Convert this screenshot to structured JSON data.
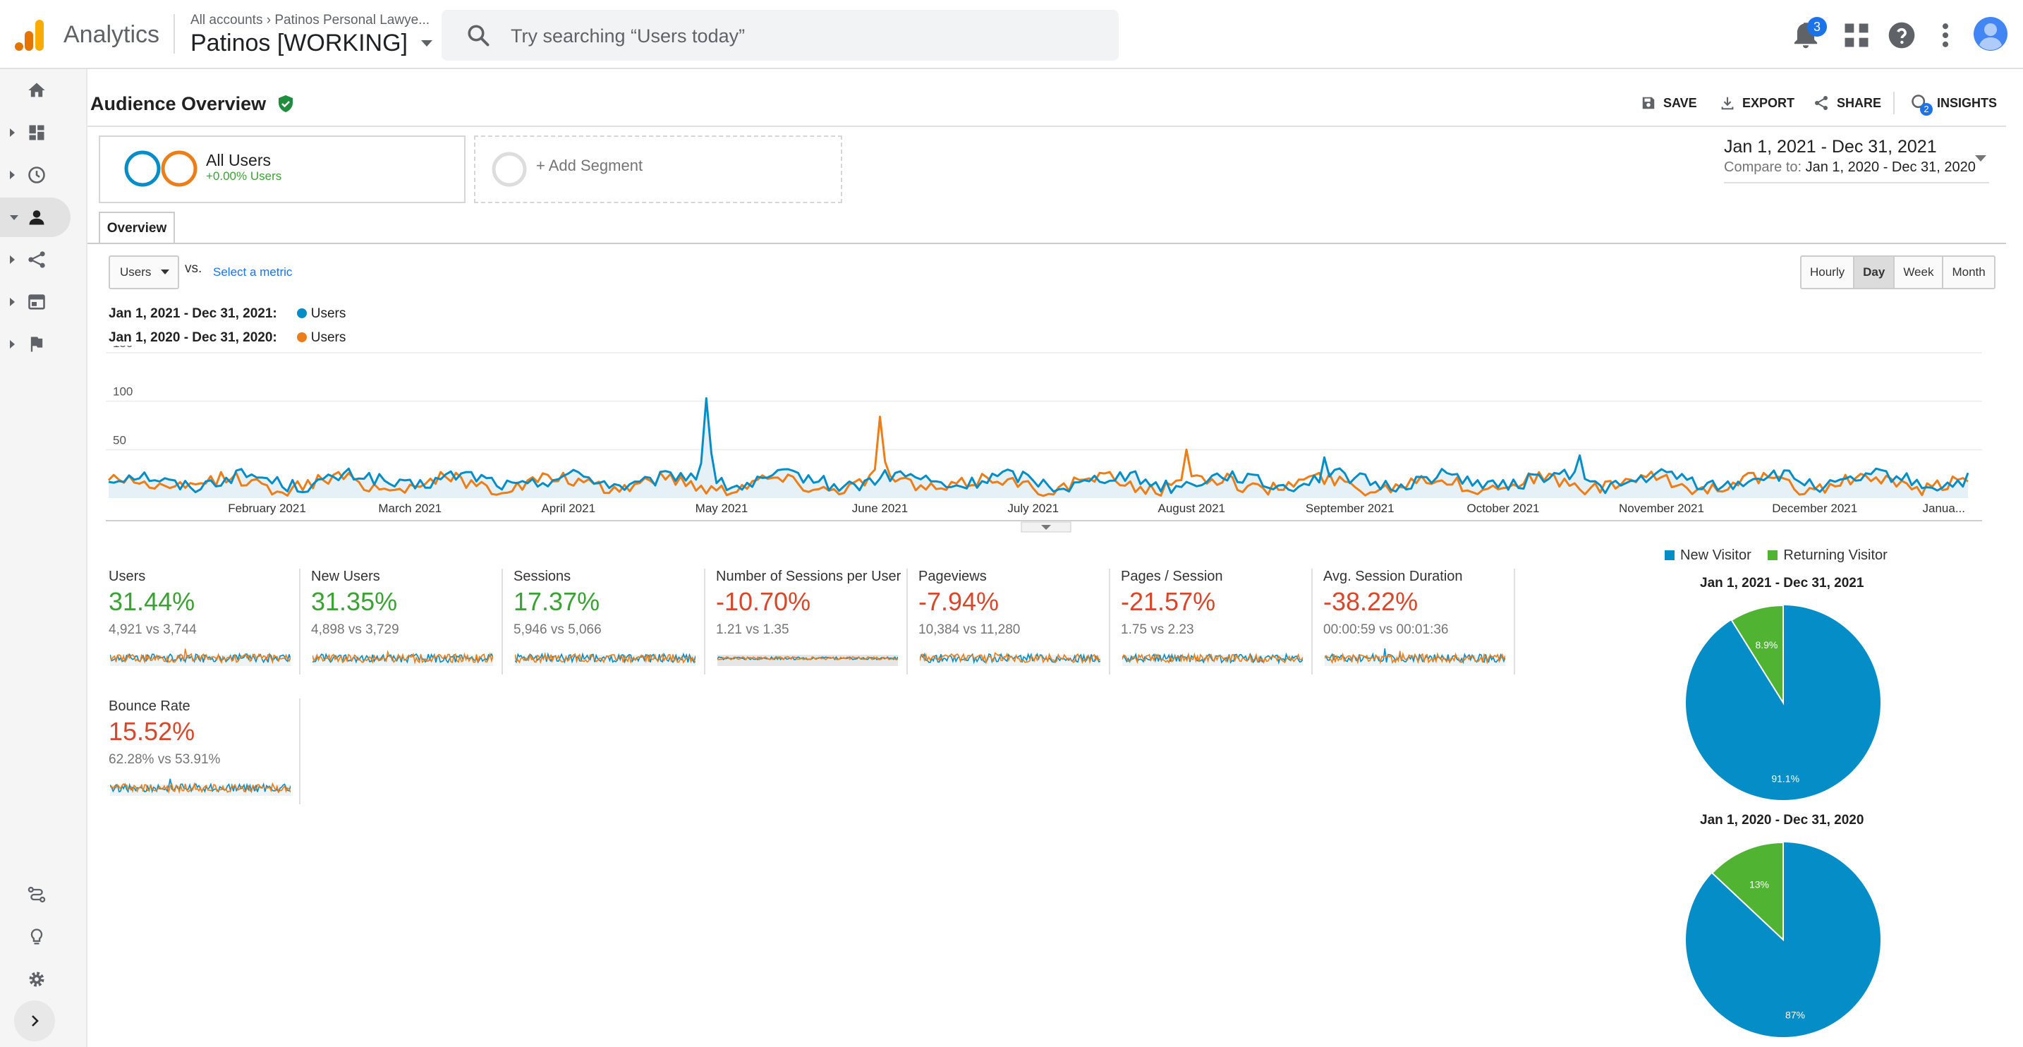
{
  "header": {
    "app_name": "Analytics",
    "breadcrumb": "All accounts › Patinos Personal Lawye...",
    "property": "Patinos [WORKING]",
    "search_placeholder": "Try searching “Users today”",
    "notification_count": "3"
  },
  "page": {
    "title": "Audience Overview",
    "actions": {
      "save": "SAVE",
      "export": "EXPORT",
      "share": "SHARE",
      "insights": "INSIGHTS"
    },
    "insights_badge": "2"
  },
  "segments": {
    "all_users_label": "All Users",
    "all_users_sub": "+0.00% Users",
    "add_segment": "+ Add Segment"
  },
  "date_range": {
    "main": "Jan 1, 2021 - Dec 31, 2021",
    "compare_label": "Compare to:",
    "compare": "Jan 1, 2020 - Dec 31, 2020"
  },
  "tabs": {
    "overview": "Overview"
  },
  "metric_picker": {
    "selected": "Users",
    "vs": "vs.",
    "select_metric": "Select a metric",
    "granularity": [
      "Hourly",
      "Day",
      "Week",
      "Month"
    ],
    "granularity_selected": "Day"
  },
  "chart_legend": [
    {
      "range": "Jan 1, 2021 - Dec 31, 2021:",
      "series": "Users",
      "color": "#058dc7"
    },
    {
      "range": "Jan 1, 2020 - Dec 31, 2020:",
      "series": "Users",
      "color": "#ed7e17"
    }
  ],
  "chart_data": {
    "type": "line",
    "y_ticks": [
      "150",
      "100",
      "50"
    ],
    "ylim": [
      0,
      150
    ],
    "x_tick_labels": [
      "February 2021",
      "March 2021",
      "April 2021",
      "May 2021",
      "June 2021",
      "July 2021",
      "August 2021",
      "September 2021",
      "October 2021",
      "November 2021",
      "December 2021",
      "Janua..."
    ],
    "days_in_range": 365,
    "series": [
      {
        "name": "Users",
        "range": "Jan 1, 2021 - Dec 31, 2021",
        "color": "#058dc7",
        "peaks": [
          {
            "day": 117,
            "value": 103
          },
          {
            "day": 288,
            "value": 44
          },
          {
            "day": 238,
            "value": 42
          }
        ],
        "baseline": 15,
        "total": 4921
      },
      {
        "name": "Users",
        "range": "Jan 1, 2020 - Dec 31, 2020",
        "color": "#ed7e17",
        "peaks": [
          {
            "day": 151,
            "value": 84
          },
          {
            "day": 211,
            "value": 50
          }
        ],
        "baseline": 12,
        "total": 3744
      }
    ]
  },
  "scorecards": [
    {
      "title": "Users",
      "change": "31.44%",
      "trend": "up",
      "compare": "4,921 vs 3,744"
    },
    {
      "title": "New Users",
      "change": "31.35%",
      "trend": "up",
      "compare": "4,898 vs 3,729"
    },
    {
      "title": "Sessions",
      "change": "17.37%",
      "trend": "up",
      "compare": "5,946 vs 5,066"
    },
    {
      "title": "Number of Sessions per User",
      "change": "-10.70%",
      "trend": "down",
      "compare": "1.21 vs 1.35"
    },
    {
      "title": "Pageviews",
      "change": "-7.94%",
      "trend": "down",
      "compare": "10,384 vs 11,280"
    },
    {
      "title": "Pages / Session",
      "change": "-21.57%",
      "trend": "down",
      "compare": "1.75 vs 2.23"
    },
    {
      "title": "Avg. Session Duration",
      "change": "-38.22%",
      "trend": "down",
      "compare": "00:00:59 vs 00:01:36"
    },
    {
      "title": "Bounce Rate",
      "change": "15.52%",
      "trend": "down",
      "compare": "62.28% vs 53.91%"
    }
  ],
  "pie_legend": [
    {
      "label": "New Visitor",
      "color": "#058dc7"
    },
    {
      "label": "Returning Visitor",
      "color": "#50b432"
    }
  ],
  "pies": [
    {
      "title": "Jan 1, 2021 - Dec 31, 2021",
      "new_visitor": 91.1,
      "returning_visitor": 8.9,
      "new_label": "91.1%",
      "returning_label": "8.9%"
    },
    {
      "title": "Jan 1, 2020 - Dec 31, 2020",
      "new_visitor": 87,
      "returning_visitor": 13,
      "new_label": "87%",
      "returning_label": "13%"
    }
  ],
  "colors": {
    "positive": "#3aa233",
    "negative": "#d9472b",
    "accent": "#1a73e8"
  }
}
